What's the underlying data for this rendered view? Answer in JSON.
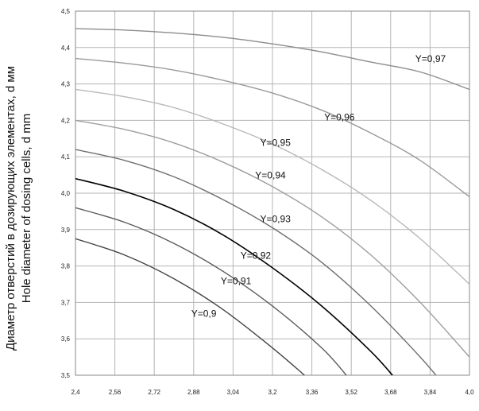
{
  "chart_data": {
    "type": "line",
    "ylabel_ru": "Диаметр отверстий в дозирующих элементах, d мм",
    "ylabel_en": "Hole diameter of dosing cells, d mm",
    "xlabel": "",
    "xlim": [
      2.4,
      4.0
    ],
    "ylim": [
      3.5,
      4.5
    ],
    "x_ticks": [
      "2,4",
      "2,56",
      "2,72",
      "2,88",
      "3,04",
      "3,2",
      "3,36",
      "3,52",
      "3,68",
      "3,84",
      "4,0"
    ],
    "y_ticks": [
      "3,5",
      "3,6",
      "3,7",
      "3,8",
      "3,9",
      "4,0",
      "4,1",
      "4,2",
      "4,3",
      "4,4",
      "4,5"
    ],
    "grid": true,
    "series": [
      {
        "name": "Y=0,97",
        "color": "#8c8c8c",
        "x": [
          2.4,
          2.6,
          2.8,
          3.0,
          3.2,
          3.4,
          3.6,
          3.8,
          4.0
        ],
        "y": [
          4.452,
          4.448,
          4.44,
          4.428,
          4.41,
          4.388,
          4.36,
          4.333,
          4.285
        ]
      },
      {
        "name": "Y=0,96",
        "color": "#9a9a9a",
        "x": [
          2.4,
          2.6,
          2.8,
          3.0,
          3.2,
          3.4,
          3.6,
          3.8,
          4.0
        ],
        "y": [
          4.37,
          4.357,
          4.338,
          4.31,
          4.275,
          4.228,
          4.165,
          4.09,
          3.99
        ]
      },
      {
        "name": "Y=0,95",
        "color": "#b8b8b8",
        "x": [
          2.4,
          2.6,
          2.8,
          3.0,
          3.2,
          3.4,
          3.6,
          3.8,
          4.0
        ],
        "y": [
          4.285,
          4.265,
          4.235,
          4.19,
          4.135,
          4.065,
          3.98,
          3.875,
          3.75
        ]
      },
      {
        "name": "Y=0,94",
        "color": "#9e9e9e",
        "x": [
          2.4,
          2.6,
          2.8,
          3.0,
          3.2,
          3.4,
          3.6,
          3.8,
          4.0
        ],
        "y": [
          4.2,
          4.175,
          4.138,
          4.085,
          4.018,
          3.935,
          3.83,
          3.7,
          3.55
        ]
      },
      {
        "name": "Y=0,93",
        "color": "#6f6f6f",
        "x": [
          2.4,
          2.6,
          2.8,
          3.0,
          3.2,
          3.4,
          3.6,
          3.8,
          3.9
        ],
        "y": [
          4.12,
          4.09,
          4.045,
          3.982,
          3.905,
          3.81,
          3.69,
          3.55,
          3.47
        ]
      },
      {
        "name": "Y=0,92",
        "color": "#000000",
        "x": [
          2.4,
          2.6,
          2.8,
          3.0,
          3.2,
          3.4,
          3.6,
          3.7
        ],
        "y": [
          4.04,
          4.005,
          3.955,
          3.885,
          3.795,
          3.69,
          3.565,
          3.49
        ]
      },
      {
        "name": "Y=0,91",
        "color": "#5a5a5a",
        "x": [
          2.4,
          2.6,
          2.8,
          3.0,
          3.2,
          3.4,
          3.5
        ],
        "y": [
          3.96,
          3.92,
          3.862,
          3.785,
          3.69,
          3.575,
          3.5
        ]
      },
      {
        "name": "Y=0,9",
        "color": "#444444",
        "x": [
          2.4,
          2.6,
          2.8,
          3.0,
          3.2,
          3.33
        ],
        "y": [
          3.875,
          3.83,
          3.765,
          3.68,
          3.575,
          3.5
        ]
      }
    ],
    "label_positions_data": [
      {
        "text": "Y=0,97",
        "x": 3.78,
        "y": 4.36
      },
      {
        "text": "Y=0,96",
        "x": 3.41,
        "y": 4.2
      },
      {
        "text": "Y=0,95",
        "x": 3.15,
        "y": 4.13
      },
      {
        "text": "Y=0,94",
        "x": 3.13,
        "y": 4.04
      },
      {
        "text": "Y=0,93",
        "x": 3.15,
        "y": 3.92
      },
      {
        "text": "Y=0,92",
        "x": 3.07,
        "y": 3.82
      },
      {
        "text": "Y=0,91",
        "x": 2.99,
        "y": 3.75
      },
      {
        "text": "Y=0,9",
        "x": 2.87,
        "y": 3.66
      }
    ]
  }
}
